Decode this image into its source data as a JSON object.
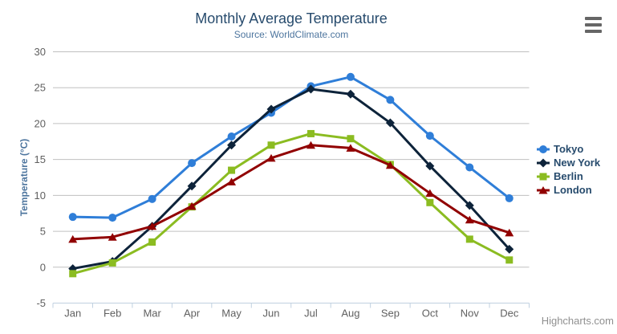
{
  "credits": "Highcharts.com",
  "colors": {
    "background": "#ffffff",
    "title": "#274b6d",
    "subtitle": "#4d759e",
    "yaxis_title": "#4d759e",
    "axis_labels": "#606060",
    "grid": "#c0c0c0",
    "axis_line": "#c0d0e0",
    "legend_text": "#274b6d",
    "credits": "#909090",
    "menu_icon": "#666666"
  },
  "icons": {
    "export_menu": "hamburger-menu-icon"
  },
  "chart_data": {
    "type": "line",
    "title": "Monthly Average Temperature",
    "subtitle": "Source: WorldClimate.com",
    "xlabel": "",
    "ylabel": "Temperature (°C)",
    "ylim": [
      -5,
      30
    ],
    "ytick_step": 5,
    "yticks": [
      -5,
      0,
      5,
      10,
      15,
      20,
      25,
      30
    ],
    "grid": true,
    "legend_position": "right",
    "categories": [
      "Jan",
      "Feb",
      "Mar",
      "Apr",
      "May",
      "Jun",
      "Jul",
      "Aug",
      "Sep",
      "Oct",
      "Nov",
      "Dec"
    ],
    "series": [
      {
        "name": "Tokyo",
        "color": "#2f7ed8",
        "marker": "circle",
        "values": [
          7.0,
          6.9,
          9.5,
          14.5,
          18.2,
          21.5,
          25.2,
          26.5,
          23.3,
          18.3,
          13.9,
          9.6
        ]
      },
      {
        "name": "New York",
        "color": "#0d233a",
        "marker": "diamond",
        "values": [
          -0.2,
          0.8,
          5.7,
          11.3,
          17.0,
          22.0,
          24.8,
          24.1,
          20.1,
          14.1,
          8.6,
          2.5
        ]
      },
      {
        "name": "Berlin",
        "color": "#8bbc21",
        "marker": "square",
        "values": [
          -0.9,
          0.6,
          3.5,
          8.4,
          13.5,
          17.0,
          18.6,
          17.9,
          14.3,
          9.0,
          3.9,
          1.0
        ]
      },
      {
        "name": "London",
        "color": "#910000",
        "marker": "triangle",
        "values": [
          3.9,
          4.2,
          5.7,
          8.5,
          11.9,
          15.2,
          17.0,
          16.6,
          14.2,
          10.3,
          6.6,
          4.8
        ]
      }
    ]
  }
}
